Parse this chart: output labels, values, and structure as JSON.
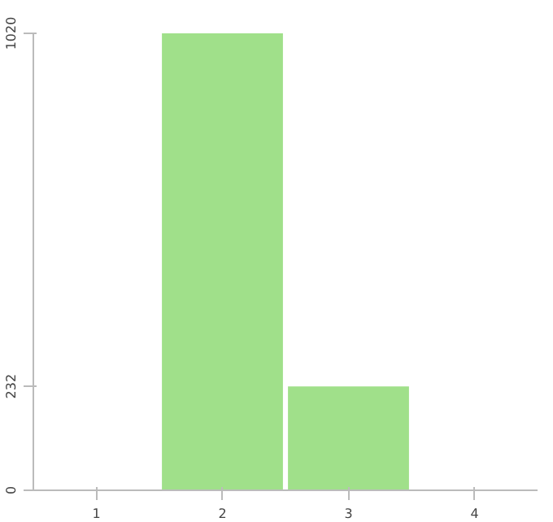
{
  "chart_data": {
    "type": "bar",
    "categories": [
      "1",
      "2",
      "3",
      "4"
    ],
    "values": [
      0,
      1020,
      232,
      0
    ],
    "color": "#a0e08a",
    "ylim": [
      0,
      1020
    ],
    "yticks": [
      0,
      232,
      1020
    ],
    "grid": false
  }
}
